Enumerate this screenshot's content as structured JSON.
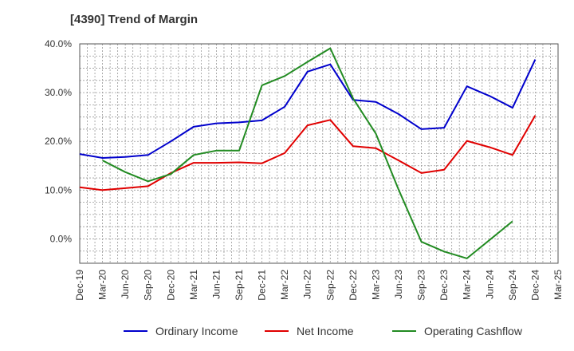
{
  "chart_data": {
    "type": "line",
    "title": "[4390]  Trend of Margin",
    "xlabel": "",
    "ylabel": "",
    "ylim": [
      -5,
      40
    ],
    "yticks": [
      0,
      10,
      20,
      30,
      40
    ],
    "y_tick_labels": [
      "0.0%",
      "10.0%",
      "20.0%",
      "30.0%",
      "40.0%"
    ],
    "categories": [
      "Dec-19",
      "Mar-20",
      "Jun-20",
      "Sep-20",
      "Dec-20",
      "Mar-21",
      "Jun-21",
      "Sep-21",
      "Dec-21",
      "Mar-22",
      "Jun-22",
      "Sep-22",
      "Dec-22",
      "Mar-23",
      "Jun-23",
      "Sep-23",
      "Dec-23",
      "Mar-24",
      "Jun-24",
      "Sep-24",
      "Dec-24",
      "Mar-25"
    ],
    "grid": true,
    "legend_position": "bottom",
    "series": [
      {
        "name": "Ordinary Income",
        "color": "#0000cc",
        "values": [
          17.4,
          16.6,
          16.8,
          17.2,
          20.0,
          23.0,
          23.7,
          23.9,
          24.3,
          27.1,
          34.3,
          35.8,
          28.5,
          28.1,
          25.6,
          22.5,
          22.8,
          31.3,
          29.3,
          26.9,
          36.8,
          null
        ]
      },
      {
        "name": "Net Income",
        "color": "#e00000",
        "values": [
          10.6,
          10.0,
          10.4,
          10.8,
          13.5,
          15.6,
          15.6,
          15.7,
          15.5,
          17.6,
          23.3,
          24.4,
          19.0,
          18.6,
          16.1,
          13.5,
          14.2,
          20.1,
          18.8,
          17.2,
          25.3,
          null
        ]
      },
      {
        "name": "Operating Cashflow",
        "color": "#228b22",
        "values": [
          null,
          16.1,
          13.7,
          11.8,
          13.3,
          17.2,
          18.1,
          18.1,
          31.5,
          33.4,
          36.3,
          39.1,
          28.8,
          21.6,
          10.1,
          -0.6,
          -2.6,
          -4.0,
          -0.2,
          3.6,
          null,
          null
        ]
      }
    ]
  }
}
